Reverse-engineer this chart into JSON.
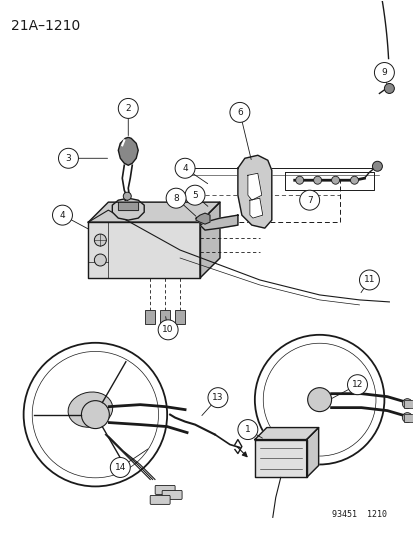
{
  "title": "21A–1210",
  "footer": "93451  1210",
  "bg_color": "#ffffff",
  "lc": "#1a1a1a",
  "figsize": [
    4.14,
    5.33
  ],
  "dpi": 100
}
